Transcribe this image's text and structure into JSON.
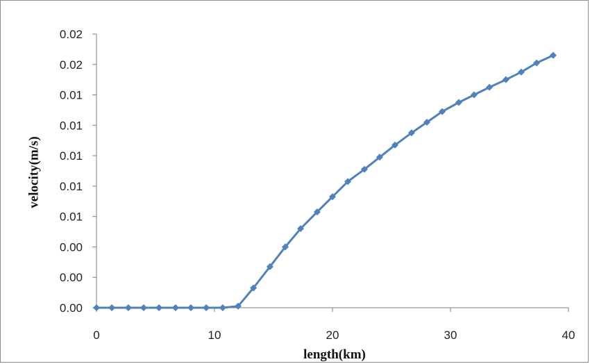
{
  "chart_data": {
    "type": "line",
    "title": "",
    "xlabel": "length(km)",
    "ylabel": "velocity(m/s)",
    "xlim": [
      0,
      40
    ],
    "ylim": [
      0,
      0.018
    ],
    "x_ticks": [
      0,
      10,
      20,
      30,
      40
    ],
    "x_tick_labels": [
      "0",
      "10",
      "20",
      "30",
      "40"
    ],
    "y_ticks": [
      0,
      0.002,
      0.004,
      0.006,
      0.008,
      0.01,
      0.012,
      0.014,
      0.016,
      0.018
    ],
    "y_tick_labels": [
      "0.00",
      "0.00",
      "0.00",
      "0.01",
      "0.01",
      "0.01",
      "0.01",
      "0.01",
      "0.02",
      "0.02"
    ],
    "grid": false,
    "legend": "none",
    "series": [
      {
        "color": "#4f81bd",
        "marker": "diamond",
        "x": [
          0,
          1.3,
          2.7,
          4.0,
          5.3,
          6.7,
          8.0,
          9.3,
          10.7,
          12.0,
          13.3,
          14.7,
          16.0,
          17.3,
          18.7,
          20.0,
          21.3,
          22.7,
          24.0,
          25.3,
          26.7,
          28.0,
          29.3,
          30.7,
          32.0,
          33.3,
          34.7,
          36.0,
          37.3,
          38.7
        ],
        "y": [
          0,
          0,
          0,
          0,
          0,
          0,
          0,
          0,
          0,
          0.0001,
          0.0013,
          0.0027,
          0.004,
          0.0052,
          0.0063,
          0.0073,
          0.0083,
          0.0091,
          0.0099,
          0.0107,
          0.0115,
          0.0122,
          0.0129,
          0.0135,
          0.014,
          0.0145,
          0.015,
          0.0155,
          0.0161,
          0.0166
        ]
      }
    ]
  }
}
